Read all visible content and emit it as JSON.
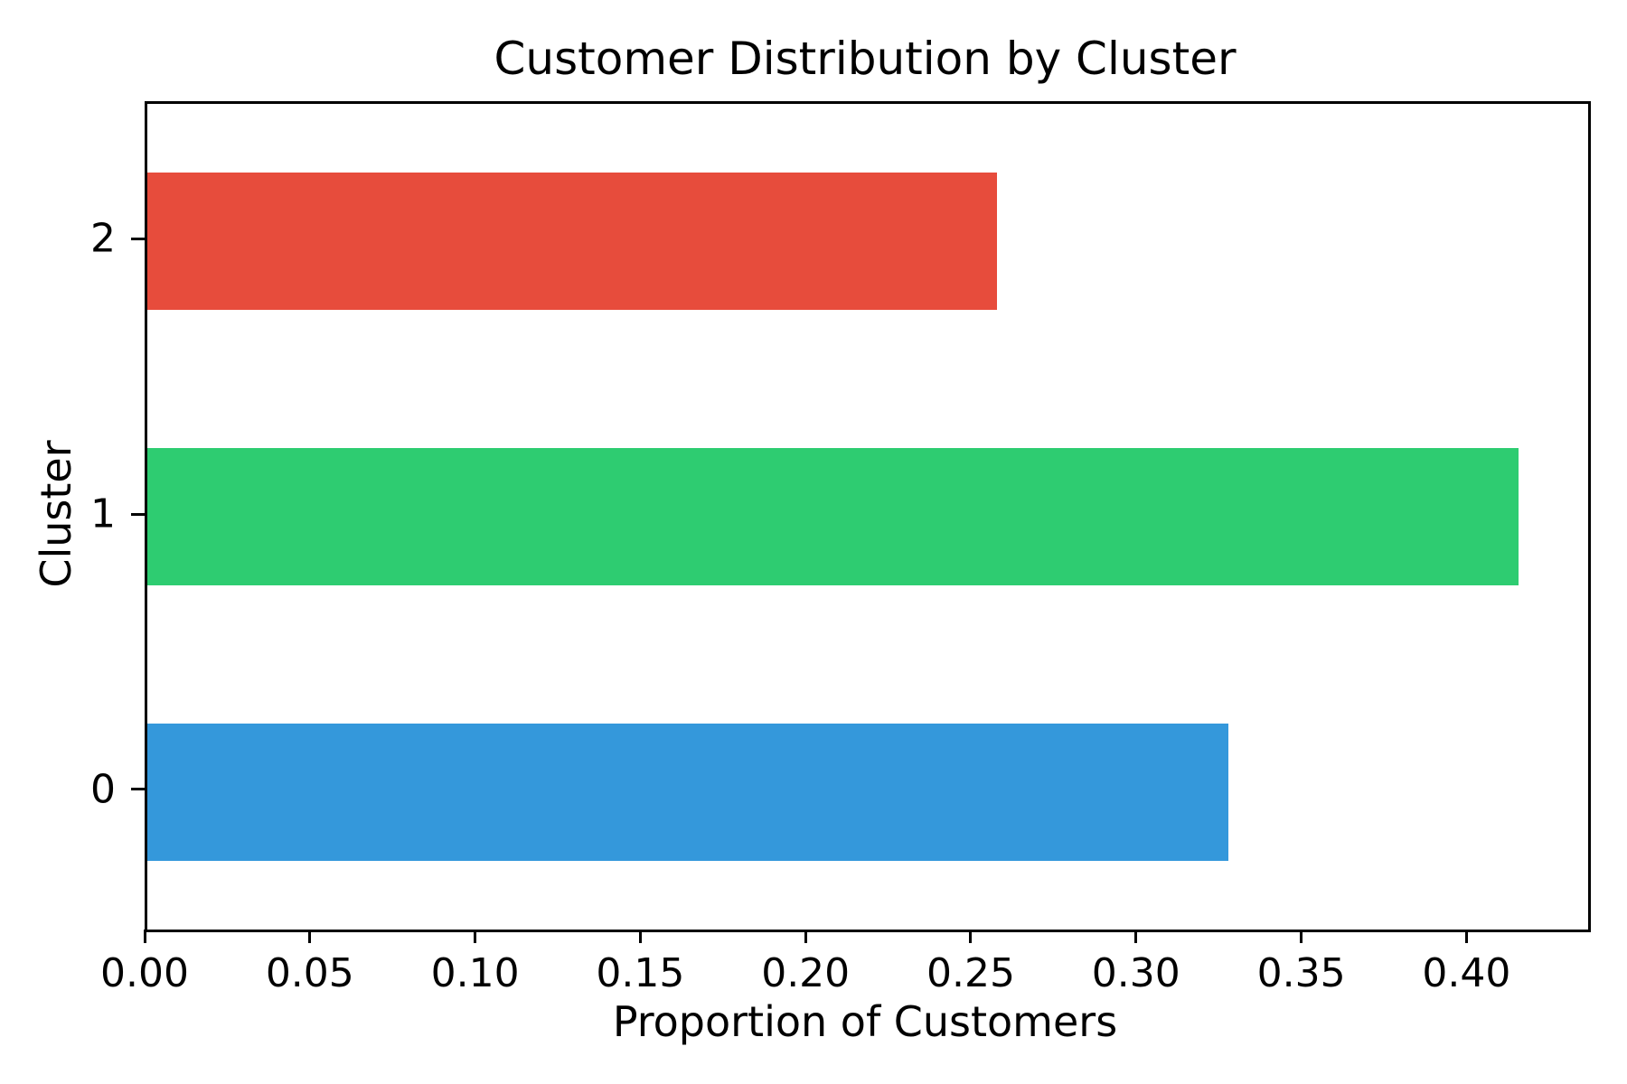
{
  "chart_data": {
    "type": "bar",
    "orientation": "horizontal",
    "title": "Customer Distribution by Cluster",
    "xlabel": "Proportion of Customers",
    "ylabel": "Cluster",
    "categories": [
      "0",
      "1",
      "2"
    ],
    "values": [
      0.327,
      0.415,
      0.257
    ],
    "bar_colors": [
      "#3498db",
      "#2ecc71",
      "#e74c3c"
    ],
    "bar_color_names": [
      "blue",
      "green",
      "red"
    ],
    "xlim": [
      0.0,
      0.436
    ],
    "ylim": [
      -0.5,
      2.5
    ],
    "bar_height_units": 0.5,
    "x_ticks": [
      0.0,
      0.05,
      0.1,
      0.15,
      0.2,
      0.25,
      0.3,
      0.35,
      0.4
    ],
    "x_tick_labels": [
      "0.00",
      "0.05",
      "0.10",
      "0.15",
      "0.20",
      "0.25",
      "0.30",
      "0.35",
      "0.40"
    ],
    "y_tick_labels": [
      "0",
      "1",
      "2"
    ],
    "grid": false,
    "legend": "none",
    "spine_color": "#000000",
    "background_color": "#ffffff"
  }
}
